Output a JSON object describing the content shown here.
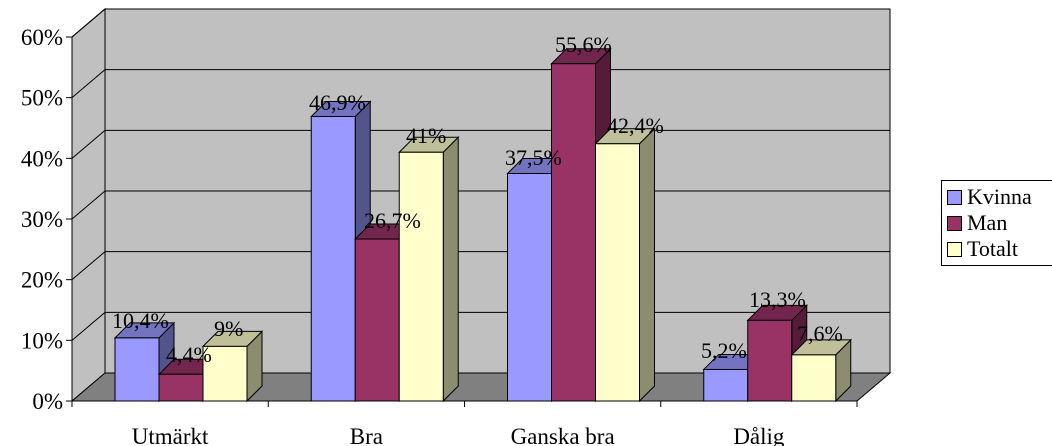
{
  "chart_data": {
    "type": "bar",
    "categories": [
      "Utmärkt",
      "Bra",
      "Ganska bra",
      "Dålig"
    ],
    "series": [
      {
        "name": "Kvinna",
        "values": [
          10.4,
          46.9,
          37.5,
          5.2
        ],
        "labels": [
          "10,4%",
          "46,9%",
          "37,5%",
          "5,2%"
        ]
      },
      {
        "name": "Man",
        "values": [
          4.4,
          26.7,
          55.6,
          13.3
        ],
        "labels": [
          "4,4%",
          "26,7%",
          "55,6%",
          "13,3%"
        ]
      },
      {
        "name": "Totalt",
        "values": [
          9,
          41,
          42.4,
          7.6
        ],
        "labels": [
          "9%",
          "41%",
          "42,4%",
          "7,6%"
        ]
      }
    ],
    "yticks": [
      "0%",
      "10%",
      "20%",
      "30%",
      "40%",
      "50%",
      "60%"
    ],
    "ylim": [
      0,
      60
    ],
    "grid": true,
    "three_d": true,
    "legend_position": "right"
  },
  "colors": {
    "Kvinna": "#9999ff",
    "Man": "#993366",
    "Totalt": "#ffffcc",
    "wall": "#c0c0c0",
    "floor": "#808080"
  },
  "legend": {
    "items": [
      {
        "label": "Kvinna"
      },
      {
        "label": "Man"
      },
      {
        "label": "Totalt"
      }
    ]
  }
}
